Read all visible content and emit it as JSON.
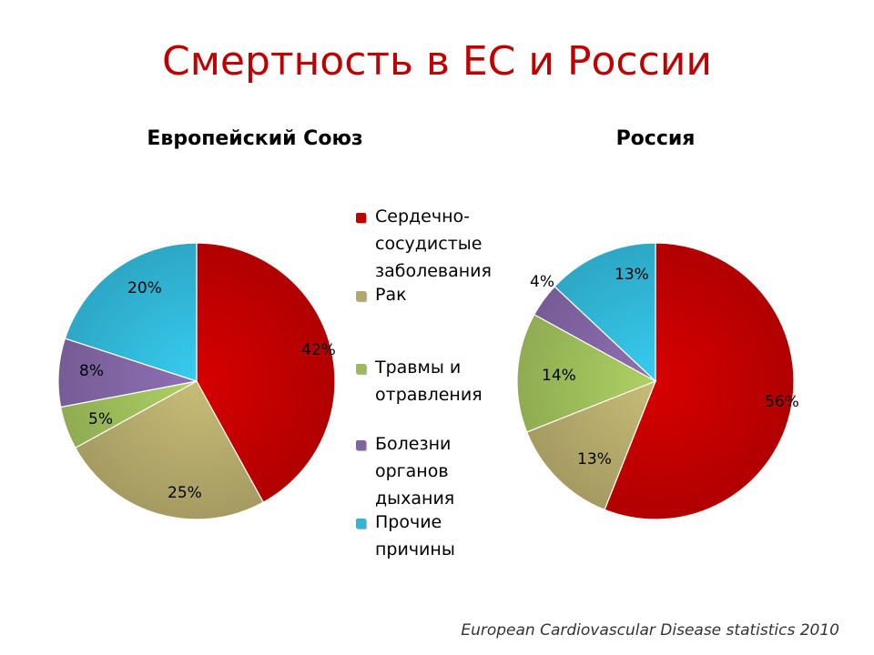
{
  "slide": {
    "title": "Смертность в ЕС и России",
    "source": "European Cardiovascular Disease statistics 2010"
  },
  "legend": [
    {
      "label": "Сердечно-сосудистые заболевания",
      "color": "#c00000"
    },
    {
      "label": "Рак",
      "color": "#b3a86a"
    },
    {
      "label": "Травмы и отравления",
      "color": "#9bbb59"
    },
    {
      "label": "Болезни органов дыхания",
      "color": "#8064a2"
    },
    {
      "label": "Прочие причины",
      "color": "#31b6d6"
    }
  ],
  "chart_data": [
    {
      "type": "pie",
      "title": "Европейский Союз",
      "categories": [
        "Сердечно-сосудистые заболевания",
        "Рак",
        "Травмы и отравления",
        "Болезни органов дыхания",
        "Прочие причины"
      ],
      "values": [
        42,
        25,
        5,
        8,
        20
      ],
      "labels": [
        "42%",
        "25%",
        "5%",
        "8%",
        "20%"
      ],
      "colors": [
        "#c00000",
        "#b3a86a",
        "#9bbb59",
        "#8064a2",
        "#31b6d6"
      ],
      "start": "12 o'clock",
      "direction": "clockwise"
    },
    {
      "type": "pie",
      "title": "Россия",
      "categories": [
        "Сердечно-сосудистые заболевания",
        "Рак",
        "Травмы и отравления",
        "Болезни органов дыхания",
        "Прочие причины"
      ],
      "values": [
        56,
        13,
        14,
        4,
        13
      ],
      "labels": [
        "56%",
        "13%",
        "14%",
        "4%",
        "13%"
      ],
      "colors": [
        "#c00000",
        "#b3a86a",
        "#9bbb59",
        "#8064a2",
        "#31b6d6"
      ],
      "start": "12 o'clock",
      "direction": "clockwise"
    }
  ]
}
